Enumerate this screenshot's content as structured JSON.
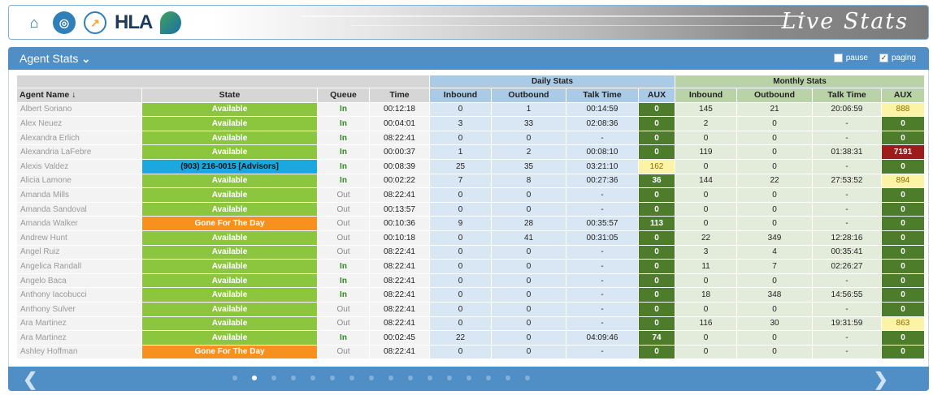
{
  "header": {
    "logos": [
      "gm-logo",
      "globe-logo",
      "chart-logo",
      "HLA",
      "leaf-logo"
    ],
    "hla_text": "HLA",
    "brand_title": "Live Stats"
  },
  "panel": {
    "title": "Agent Stats",
    "pause_label": "pause",
    "pause_checked": false,
    "paging_label": "paging",
    "paging_checked": true
  },
  "table": {
    "group_headers": {
      "daily": "Daily Stats",
      "monthly": "Monthly Stats"
    },
    "columns": {
      "agent_name": "Agent Name ↓",
      "state": "State",
      "queue": "Queue",
      "time": "Time",
      "daily_inbound": "Inbound",
      "daily_outbound": "Outbound",
      "daily_talk_time": "Talk Time",
      "daily_aux": "AUX",
      "monthly_inbound": "Inbound",
      "monthly_outbound": "Outbound",
      "monthly_talk_time": "Talk Time",
      "monthly_aux": "AUX"
    },
    "rows": [
      {
        "name": "Albert Soriano",
        "state": "Available",
        "state_type": "available",
        "queue": "In",
        "time": "00:12:18",
        "d_in": "0",
        "d_out": "1",
        "d_talk": "00:14:59",
        "d_aux": "0",
        "d_aux_type": "green",
        "m_in": "145",
        "m_out": "21",
        "m_talk": "20:06:59",
        "m_aux": "888",
        "m_aux_type": "yellow"
      },
      {
        "name": "Alex Neuez",
        "state": "Available",
        "state_type": "available",
        "queue": "In",
        "time": "00:04:01",
        "d_in": "3",
        "d_out": "33",
        "d_talk": "02:08:36",
        "d_aux": "0",
        "d_aux_type": "green",
        "m_in": "2",
        "m_out": "0",
        "m_talk": "-",
        "m_aux": "0",
        "m_aux_type": "green"
      },
      {
        "name": "Alexandra Erlich",
        "state": "Available",
        "state_type": "available",
        "queue": "In",
        "time": "08:22:41",
        "d_in": "0",
        "d_out": "0",
        "d_talk": "-",
        "d_aux": "0",
        "d_aux_type": "green",
        "m_in": "0",
        "m_out": "0",
        "m_talk": "-",
        "m_aux": "0",
        "m_aux_type": "green"
      },
      {
        "name": "Alexandria LaFebre",
        "state": "Available",
        "state_type": "available",
        "queue": "In",
        "time": "00:00:37",
        "d_in": "1",
        "d_out": "2",
        "d_talk": "00:08:10",
        "d_aux": "0",
        "d_aux_type": "green",
        "m_in": "119",
        "m_out": "0",
        "m_talk": "01:38:31",
        "m_aux": "7191",
        "m_aux_type": "red"
      },
      {
        "name": "Alexis Valdez",
        "state": "(903) 216-0015 [Advisors]",
        "state_type": "phone",
        "queue": "In",
        "time": "00:08:39",
        "d_in": "25",
        "d_out": "35",
        "d_talk": "03:21:10",
        "d_aux": "162",
        "d_aux_type": "yellow",
        "m_in": "0",
        "m_out": "0",
        "m_talk": "-",
        "m_aux": "0",
        "m_aux_type": "green"
      },
      {
        "name": "Alicia Lamone",
        "state": "Available",
        "state_type": "available",
        "queue": "In",
        "time": "00:02:22",
        "d_in": "7",
        "d_out": "8",
        "d_talk": "00:27:36",
        "d_aux": "36",
        "d_aux_type": "green",
        "m_in": "144",
        "m_out": "22",
        "m_talk": "27:53:52",
        "m_aux": "894",
        "m_aux_type": "yellow"
      },
      {
        "name": "Amanda Mills",
        "state": "Available",
        "state_type": "available",
        "queue": "Out",
        "time": "08:22:41",
        "d_in": "0",
        "d_out": "0",
        "d_talk": "-",
        "d_aux": "0",
        "d_aux_type": "green",
        "m_in": "0",
        "m_out": "0",
        "m_talk": "-",
        "m_aux": "0",
        "m_aux_type": "green"
      },
      {
        "name": "Amanda Sandoval",
        "state": "Available",
        "state_type": "available",
        "queue": "Out",
        "time": "00:13:57",
        "d_in": "0",
        "d_out": "0",
        "d_talk": "-",
        "d_aux": "0",
        "d_aux_type": "green",
        "m_in": "0",
        "m_out": "0",
        "m_talk": "-",
        "m_aux": "0",
        "m_aux_type": "green"
      },
      {
        "name": "Amanda Walker",
        "state": "Gone For The Day",
        "state_type": "gone",
        "queue": "Out",
        "time": "00:10:36",
        "d_in": "9",
        "d_out": "28",
        "d_talk": "00:35:57",
        "d_aux": "113",
        "d_aux_type": "green",
        "m_in": "0",
        "m_out": "0",
        "m_talk": "-",
        "m_aux": "0",
        "m_aux_type": "green"
      },
      {
        "name": "Andrew Hunt",
        "state": "Available",
        "state_type": "available",
        "queue": "Out",
        "time": "00:10:18",
        "d_in": "0",
        "d_out": "41",
        "d_talk": "00:31:05",
        "d_aux": "0",
        "d_aux_type": "green",
        "m_in": "22",
        "m_out": "349",
        "m_talk": "12:28:16",
        "m_aux": "0",
        "m_aux_type": "green"
      },
      {
        "name": "Angel Ruiz",
        "state": "Available",
        "state_type": "available",
        "queue": "Out",
        "time": "08:22:41",
        "d_in": "0",
        "d_out": "0",
        "d_talk": "-",
        "d_aux": "0",
        "d_aux_type": "green",
        "m_in": "3",
        "m_out": "4",
        "m_talk": "00:35:41",
        "m_aux": "0",
        "m_aux_type": "green"
      },
      {
        "name": "Angelica Randall",
        "state": "Available",
        "state_type": "available",
        "queue": "In",
        "time": "08:22:41",
        "d_in": "0",
        "d_out": "0",
        "d_talk": "-",
        "d_aux": "0",
        "d_aux_type": "green",
        "m_in": "11",
        "m_out": "7",
        "m_talk": "02:26:27",
        "m_aux": "0",
        "m_aux_type": "green"
      },
      {
        "name": "Angelo Baca",
        "state": "Available",
        "state_type": "available",
        "queue": "In",
        "time": "08:22:41",
        "d_in": "0",
        "d_out": "0",
        "d_talk": "-",
        "d_aux": "0",
        "d_aux_type": "green",
        "m_in": "0",
        "m_out": "0",
        "m_talk": "-",
        "m_aux": "0",
        "m_aux_type": "green"
      },
      {
        "name": "Anthony Iacobucci",
        "state": "Available",
        "state_type": "available",
        "queue": "In",
        "time": "08:22:41",
        "d_in": "0",
        "d_out": "0",
        "d_talk": "-",
        "d_aux": "0",
        "d_aux_type": "green",
        "m_in": "18",
        "m_out": "348",
        "m_talk": "14:56:55",
        "m_aux": "0",
        "m_aux_type": "green"
      },
      {
        "name": "Anthony Sulver",
        "state": "Available",
        "state_type": "available",
        "queue": "Out",
        "time": "08:22:41",
        "d_in": "0",
        "d_out": "0",
        "d_talk": "-",
        "d_aux": "0",
        "d_aux_type": "green",
        "m_in": "0",
        "m_out": "0",
        "m_talk": "-",
        "m_aux": "0",
        "m_aux_type": "green"
      },
      {
        "name": "Ara Martinez",
        "state": "Available",
        "state_type": "available",
        "queue": "Out",
        "time": "08:22:41",
        "d_in": "0",
        "d_out": "0",
        "d_talk": "-",
        "d_aux": "0",
        "d_aux_type": "green",
        "m_in": "116",
        "m_out": "30",
        "m_talk": "19:31:59",
        "m_aux": "863",
        "m_aux_type": "yellow"
      },
      {
        "name": "Ara Martinez",
        "state": "Available",
        "state_type": "available",
        "queue": "In",
        "time": "00:02:45",
        "d_in": "22",
        "d_out": "0",
        "d_talk": "04:09:46",
        "d_aux": "74",
        "d_aux_type": "green",
        "m_in": "0",
        "m_out": "0",
        "m_talk": "-",
        "m_aux": "0",
        "m_aux_type": "green"
      },
      {
        "name": "Ashley Hoffman",
        "state": "Gone For The Day",
        "state_type": "gone",
        "queue": "Out",
        "time": "08:22:41",
        "d_in": "0",
        "d_out": "0",
        "d_talk": "-",
        "d_aux": "0",
        "d_aux_type": "green",
        "m_in": "0",
        "m_out": "0",
        "m_talk": "-",
        "m_aux": "0",
        "m_aux_type": "green"
      }
    ]
  },
  "pager": {
    "prev_icon": "chevron-left-icon",
    "next_icon": "chevron-right-icon",
    "page_count": 16,
    "active_page": 2
  },
  "colors": {
    "panel_blue": "#4f8fc5",
    "available_green": "#8cc63f",
    "gone_orange": "#f7901e",
    "phone_blue": "#1ba8e0",
    "aux_dark_green": "#4d7c2b",
    "aux_yellow": "#fbf3a6",
    "aux_red": "#9e1b1b"
  }
}
